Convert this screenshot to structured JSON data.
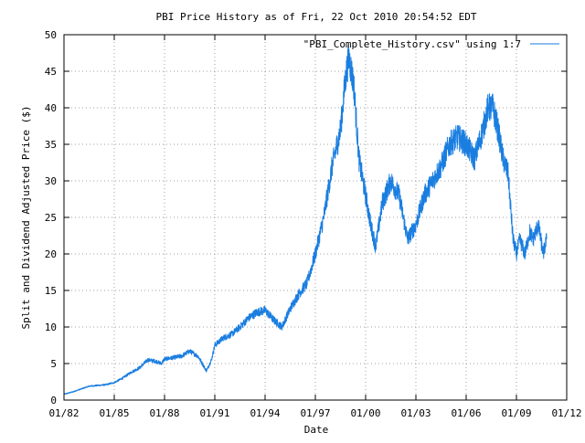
{
  "chart_data": {
    "type": "line",
    "title": "PBI Price History as of Fri, 22 Oct 2010 20:54:52 EDT",
    "xlabel": "Date",
    "ylabel": "Split and Dividend Adjusted Price ($)",
    "xlim": [
      "01/82",
      "01/12"
    ],
    "ylim": [
      0,
      50
    ],
    "grid": true,
    "legend_position": "top-right",
    "x_ticks": [
      "01/82",
      "01/85",
      "01/88",
      "01/91",
      "01/94",
      "01/97",
      "01/00",
      "01/03",
      "01/06",
      "01/09",
      "01/12"
    ],
    "y_ticks": [
      "0",
      "5",
      "10",
      "15",
      "20",
      "25",
      "30",
      "35",
      "40",
      "45",
      "50"
    ],
    "series": [
      {
        "name": "\"PBI_Complete_History.csv\" using 1:7",
        "color": "#1a7ee0",
        "x": [
          "1982.0",
          "1982.5",
          "1983.0",
          "1983.5",
          "1984.0",
          "1984.5",
          "1985.0",
          "1985.5",
          "1986.0",
          "1986.5",
          "1987.0",
          "1987.5",
          "1987.8",
          "1988.0",
          "1988.5",
          "1989.0",
          "1989.5",
          "1990.0",
          "1990.5",
          "1990.8",
          "1991.0",
          "1991.5",
          "1992.0",
          "1992.5",
          "1993.0",
          "1993.5",
          "1994.0",
          "1994.5",
          "1995.0",
          "1995.5",
          "1996.0",
          "1996.5",
          "1997.0",
          "1997.5",
          "1998.0",
          "1998.5",
          "1998.8",
          "1999.0",
          "1999.3",
          "1999.6",
          "2000.0",
          "2000.3",
          "2000.6",
          "2001.0",
          "2001.5",
          "2002.0",
          "2002.5",
          "2003.0",
          "2003.5",
          "2004.0",
          "2004.5",
          "2005.0",
          "2005.5",
          "2006.0",
          "2006.5",
          "2007.0",
          "2007.3",
          "2007.6",
          "2007.9",
          "2008.2",
          "2008.5",
          "2008.8",
          "2009.0",
          "2009.2",
          "2009.5",
          "2009.8",
          "2010.0",
          "2010.3",
          "2010.6",
          "2010.8"
        ],
        "values": [
          0.8,
          1.1,
          1.5,
          1.9,
          2.0,
          2.1,
          2.4,
          3.0,
          3.8,
          4.4,
          5.5,
          5.3,
          5.0,
          5.6,
          5.8,
          6.0,
          6.7,
          6.0,
          4.0,
          5.5,
          7.5,
          8.5,
          9.0,
          10.0,
          11.2,
          12.0,
          12.3,
          11.0,
          10.0,
          12.5,
          14.5,
          16.0,
          20.0,
          25.0,
          32.0,
          37.0,
          44.0,
          47.0,
          43.0,
          33.0,
          28.0,
          24.0,
          21.0,
          27.0,
          30.0,
          28.0,
          22.0,
          24.0,
          28.0,
          30.0,
          32.0,
          35.0,
          36.0,
          35.0,
          33.0,
          37.0,
          40.0,
          40.0,
          37.0,
          33.0,
          31.0,
          22.0,
          20.0,
          22.0,
          20.0,
          23.0,
          22.0,
          24.0,
          20.0,
          22.0
        ]
      }
    ]
  }
}
